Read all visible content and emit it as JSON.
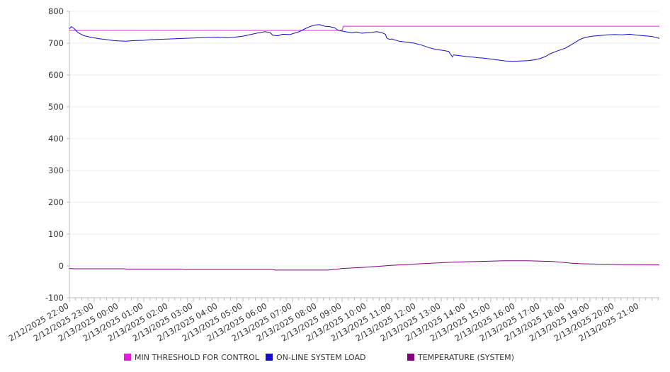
{
  "chart_data": {
    "type": "line",
    "title": "",
    "xlabel": "",
    "ylabel": "",
    "ylim": [
      -100,
      800
    ],
    "yticks": [
      -100,
      0,
      100,
      200,
      300,
      400,
      500,
      600,
      700,
      800
    ],
    "grid": "horizontal",
    "legend_position": "bottom",
    "x_range_hours": [
      0,
      23.8
    ],
    "xticks": [
      {
        "h": 0,
        "label": "2/12/2025 22:00"
      },
      {
        "h": 1,
        "label": "2/12/2025 23:00"
      },
      {
        "h": 2,
        "label": "2/13/2025 00:00"
      },
      {
        "h": 3,
        "label": "2/13/2025 01:00"
      },
      {
        "h": 4,
        "label": "2/13/2025 02:00"
      },
      {
        "h": 5,
        "label": "2/13/2025 03:00"
      },
      {
        "h": 6,
        "label": "2/13/2025 04:00"
      },
      {
        "h": 7,
        "label": "2/13/2025 05:00"
      },
      {
        "h": 8,
        "label": "2/13/2025 06:00"
      },
      {
        "h": 9,
        "label": "2/13/2025 07:00"
      },
      {
        "h": 10,
        "label": "2/13/2025 08:00"
      },
      {
        "h": 11,
        "label": "2/13/2025 09:00"
      },
      {
        "h": 12,
        "label": "2/13/2025 10:00"
      },
      {
        "h": 13,
        "label": "2/13/2025 11:00"
      },
      {
        "h": 14,
        "label": "2/13/2025 12:00"
      },
      {
        "h": 15,
        "label": "2/13/2025 13:00"
      },
      {
        "h": 16,
        "label": "2/13/2025 14:00"
      },
      {
        "h": 17,
        "label": "2/13/2025 15:00"
      },
      {
        "h": 18,
        "label": "2/13/2025 16:00"
      },
      {
        "h": 19,
        "label": "2/13/2025 17:00"
      },
      {
        "h": 20,
        "label": "2/13/2025 18:00"
      },
      {
        "h": 21,
        "label": "2/13/2025 19:00"
      },
      {
        "h": 22,
        "label": "2/13/2025 20:00"
      },
      {
        "h": 23,
        "label": "2/13/2025 21:00"
      }
    ],
    "series": [
      {
        "name": "MIN THRESHOLD FOR CONTROL",
        "color": "#e020d8",
        "points": [
          [
            0,
            740
          ],
          [
            11,
            740
          ],
          [
            11.05,
            753
          ],
          [
            23.8,
            753
          ]
        ]
      },
      {
        "name": "ON-LINE SYSTEM LOAD",
        "color": "#1010c8",
        "points": [
          [
            0,
            745
          ],
          [
            0.08,
            752
          ],
          [
            0.2,
            745
          ],
          [
            0.35,
            733
          ],
          [
            0.6,
            723
          ],
          [
            0.9,
            718
          ],
          [
            1.2,
            714
          ],
          [
            1.5,
            711
          ],
          [
            1.8,
            708
          ],
          [
            2.0,
            707
          ],
          [
            2.3,
            706
          ],
          [
            2.6,
            708
          ],
          [
            3.0,
            709
          ],
          [
            3.3,
            711
          ],
          [
            3.6,
            712
          ],
          [
            4.0,
            713
          ],
          [
            4.3,
            714
          ],
          [
            4.6,
            715
          ],
          [
            5.0,
            716
          ],
          [
            5.3,
            717
          ],
          [
            5.6,
            718
          ],
          [
            6.0,
            719
          ],
          [
            6.3,
            717
          ],
          [
            6.6,
            718
          ],
          [
            7.0,
            722
          ],
          [
            7.3,
            727
          ],
          [
            7.6,
            732
          ],
          [
            7.9,
            736
          ],
          [
            8.1,
            733
          ],
          [
            8.2,
            725
          ],
          [
            8.4,
            723
          ],
          [
            8.6,
            728
          ],
          [
            8.9,
            727
          ],
          [
            9.1,
            732
          ],
          [
            9.3,
            737
          ],
          [
            9.5,
            745
          ],
          [
            9.7,
            752
          ],
          [
            9.9,
            757
          ],
          [
            10.1,
            758
          ],
          [
            10.3,
            753
          ],
          [
            10.5,
            752
          ],
          [
            10.7,
            748
          ],
          [
            10.85,
            740
          ],
          [
            11.0,
            738
          ],
          [
            11.2,
            735
          ],
          [
            11.4,
            733
          ],
          [
            11.6,
            735
          ],
          [
            11.8,
            731
          ],
          [
            12.0,
            733
          ],
          [
            12.2,
            734
          ],
          [
            12.4,
            736
          ],
          [
            12.6,
            733
          ],
          [
            12.75,
            728
          ],
          [
            12.8,
            716
          ],
          [
            12.9,
            712
          ],
          [
            13.0,
            713
          ],
          [
            13.3,
            706
          ],
          [
            13.6,
            703
          ],
          [
            13.9,
            700
          ],
          [
            14.2,
            694
          ],
          [
            14.5,
            686
          ],
          [
            14.8,
            680
          ],
          [
            15.1,
            677
          ],
          [
            15.3,
            674
          ],
          [
            15.45,
            657
          ],
          [
            15.5,
            663
          ],
          [
            15.7,
            661
          ],
          [
            16.0,
            658
          ],
          [
            16.3,
            656
          ],
          [
            16.5,
            654
          ],
          [
            16.7,
            653
          ],
          [
            17.0,
            650
          ],
          [
            17.3,
            647
          ],
          [
            17.6,
            644
          ],
          [
            17.9,
            643
          ],
          [
            18.2,
            644
          ],
          [
            18.5,
            645
          ],
          [
            18.8,
            648
          ],
          [
            19.0,
            652
          ],
          [
            19.2,
            658
          ],
          [
            19.4,
            667
          ],
          [
            19.7,
            676
          ],
          [
            20.0,
            684
          ],
          [
            20.2,
            693
          ],
          [
            20.4,
            702
          ],
          [
            20.6,
            712
          ],
          [
            20.8,
            718
          ],
          [
            21.1,
            722
          ],
          [
            21.4,
            724
          ],
          [
            21.7,
            726
          ],
          [
            22.0,
            727
          ],
          [
            22.3,
            726
          ],
          [
            22.6,
            728
          ],
          [
            22.9,
            725
          ],
          [
            23.2,
            723
          ],
          [
            23.5,
            721
          ],
          [
            23.8,
            715
          ]
        ]
      },
      {
        "name": "TEMPERATURE (SYSTEM)",
        "color": "#800080",
        "points": [
          [
            0,
            -8
          ],
          [
            0.2,
            -9
          ],
          [
            2.2,
            -9
          ],
          [
            2.3,
            -10
          ],
          [
            4.5,
            -10
          ],
          [
            4.6,
            -11
          ],
          [
            8.2,
            -11
          ],
          [
            8.3,
            -13
          ],
          [
            10.4,
            -13
          ],
          [
            10.7,
            -11
          ],
          [
            11.0,
            -8
          ],
          [
            11.5,
            -6
          ],
          [
            12.0,
            -4
          ],
          [
            12.5,
            -1
          ],
          [
            13.0,
            2
          ],
          [
            13.5,
            4
          ],
          [
            14.0,
            6
          ],
          [
            14.5,
            8
          ],
          [
            15.0,
            10
          ],
          [
            15.5,
            12
          ],
          [
            16.0,
            13
          ],
          [
            16.5,
            14
          ],
          [
            17.0,
            15
          ],
          [
            17.5,
            16
          ],
          [
            18.0,
            16
          ],
          [
            18.5,
            16
          ],
          [
            19.0,
            15
          ],
          [
            19.5,
            14
          ],
          [
            19.8,
            12
          ],
          [
            20.2,
            9
          ],
          [
            20.6,
            7
          ],
          [
            21.0,
            6
          ],
          [
            22.0,
            5
          ],
          [
            22.3,
            4
          ],
          [
            23.8,
            3
          ]
        ]
      }
    ]
  }
}
